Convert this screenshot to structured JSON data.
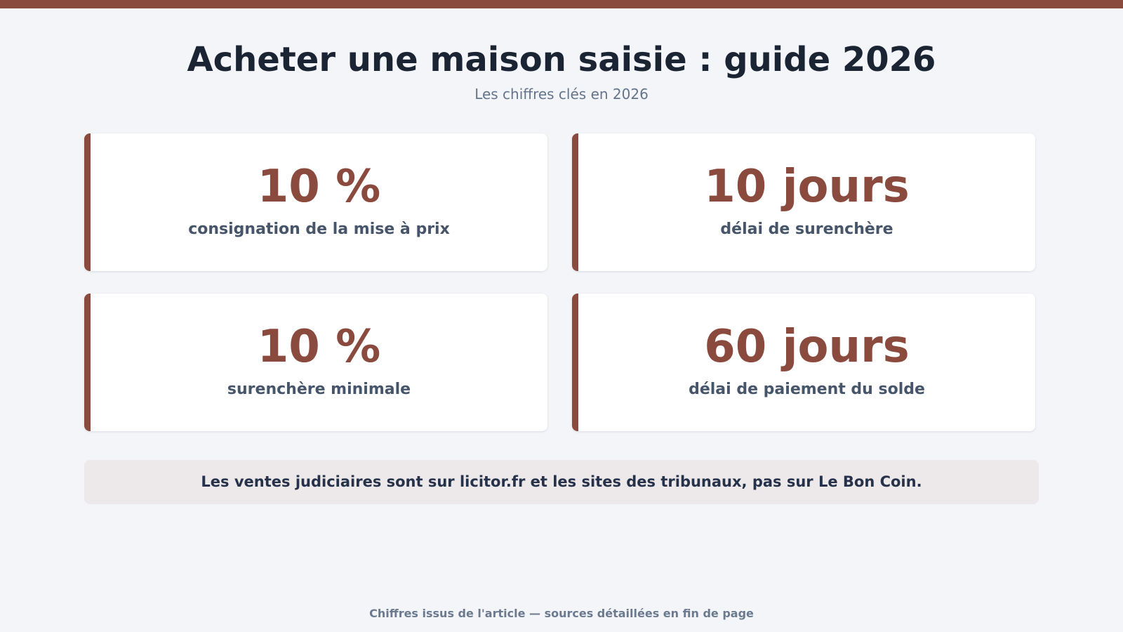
{
  "header": {
    "title": "Acheter une maison saisie : guide 2026",
    "subtitle": "Les chiffres clés en 2026"
  },
  "stats": [
    {
      "value": "10 %",
      "label": "consignation de la mise à prix"
    },
    {
      "value": "10 jours",
      "label": "délai de surenchère"
    },
    {
      "value": "10 %",
      "label": "surenchère minimale"
    },
    {
      "value": "60 jours",
      "label": "délai de paiement du solde"
    }
  ],
  "note": "Les ventes judiciaires sont sur licitor.fr et les sites des tribunaux, pas sur Le Bon Coin.",
  "footer": "Chiffres issus de l'article — sources détaillées en fin de page",
  "colors": {
    "accent": "#8b4a3e",
    "background": "#f4f5f9",
    "title": "#1b2433",
    "note_background": "#ede8ea"
  }
}
